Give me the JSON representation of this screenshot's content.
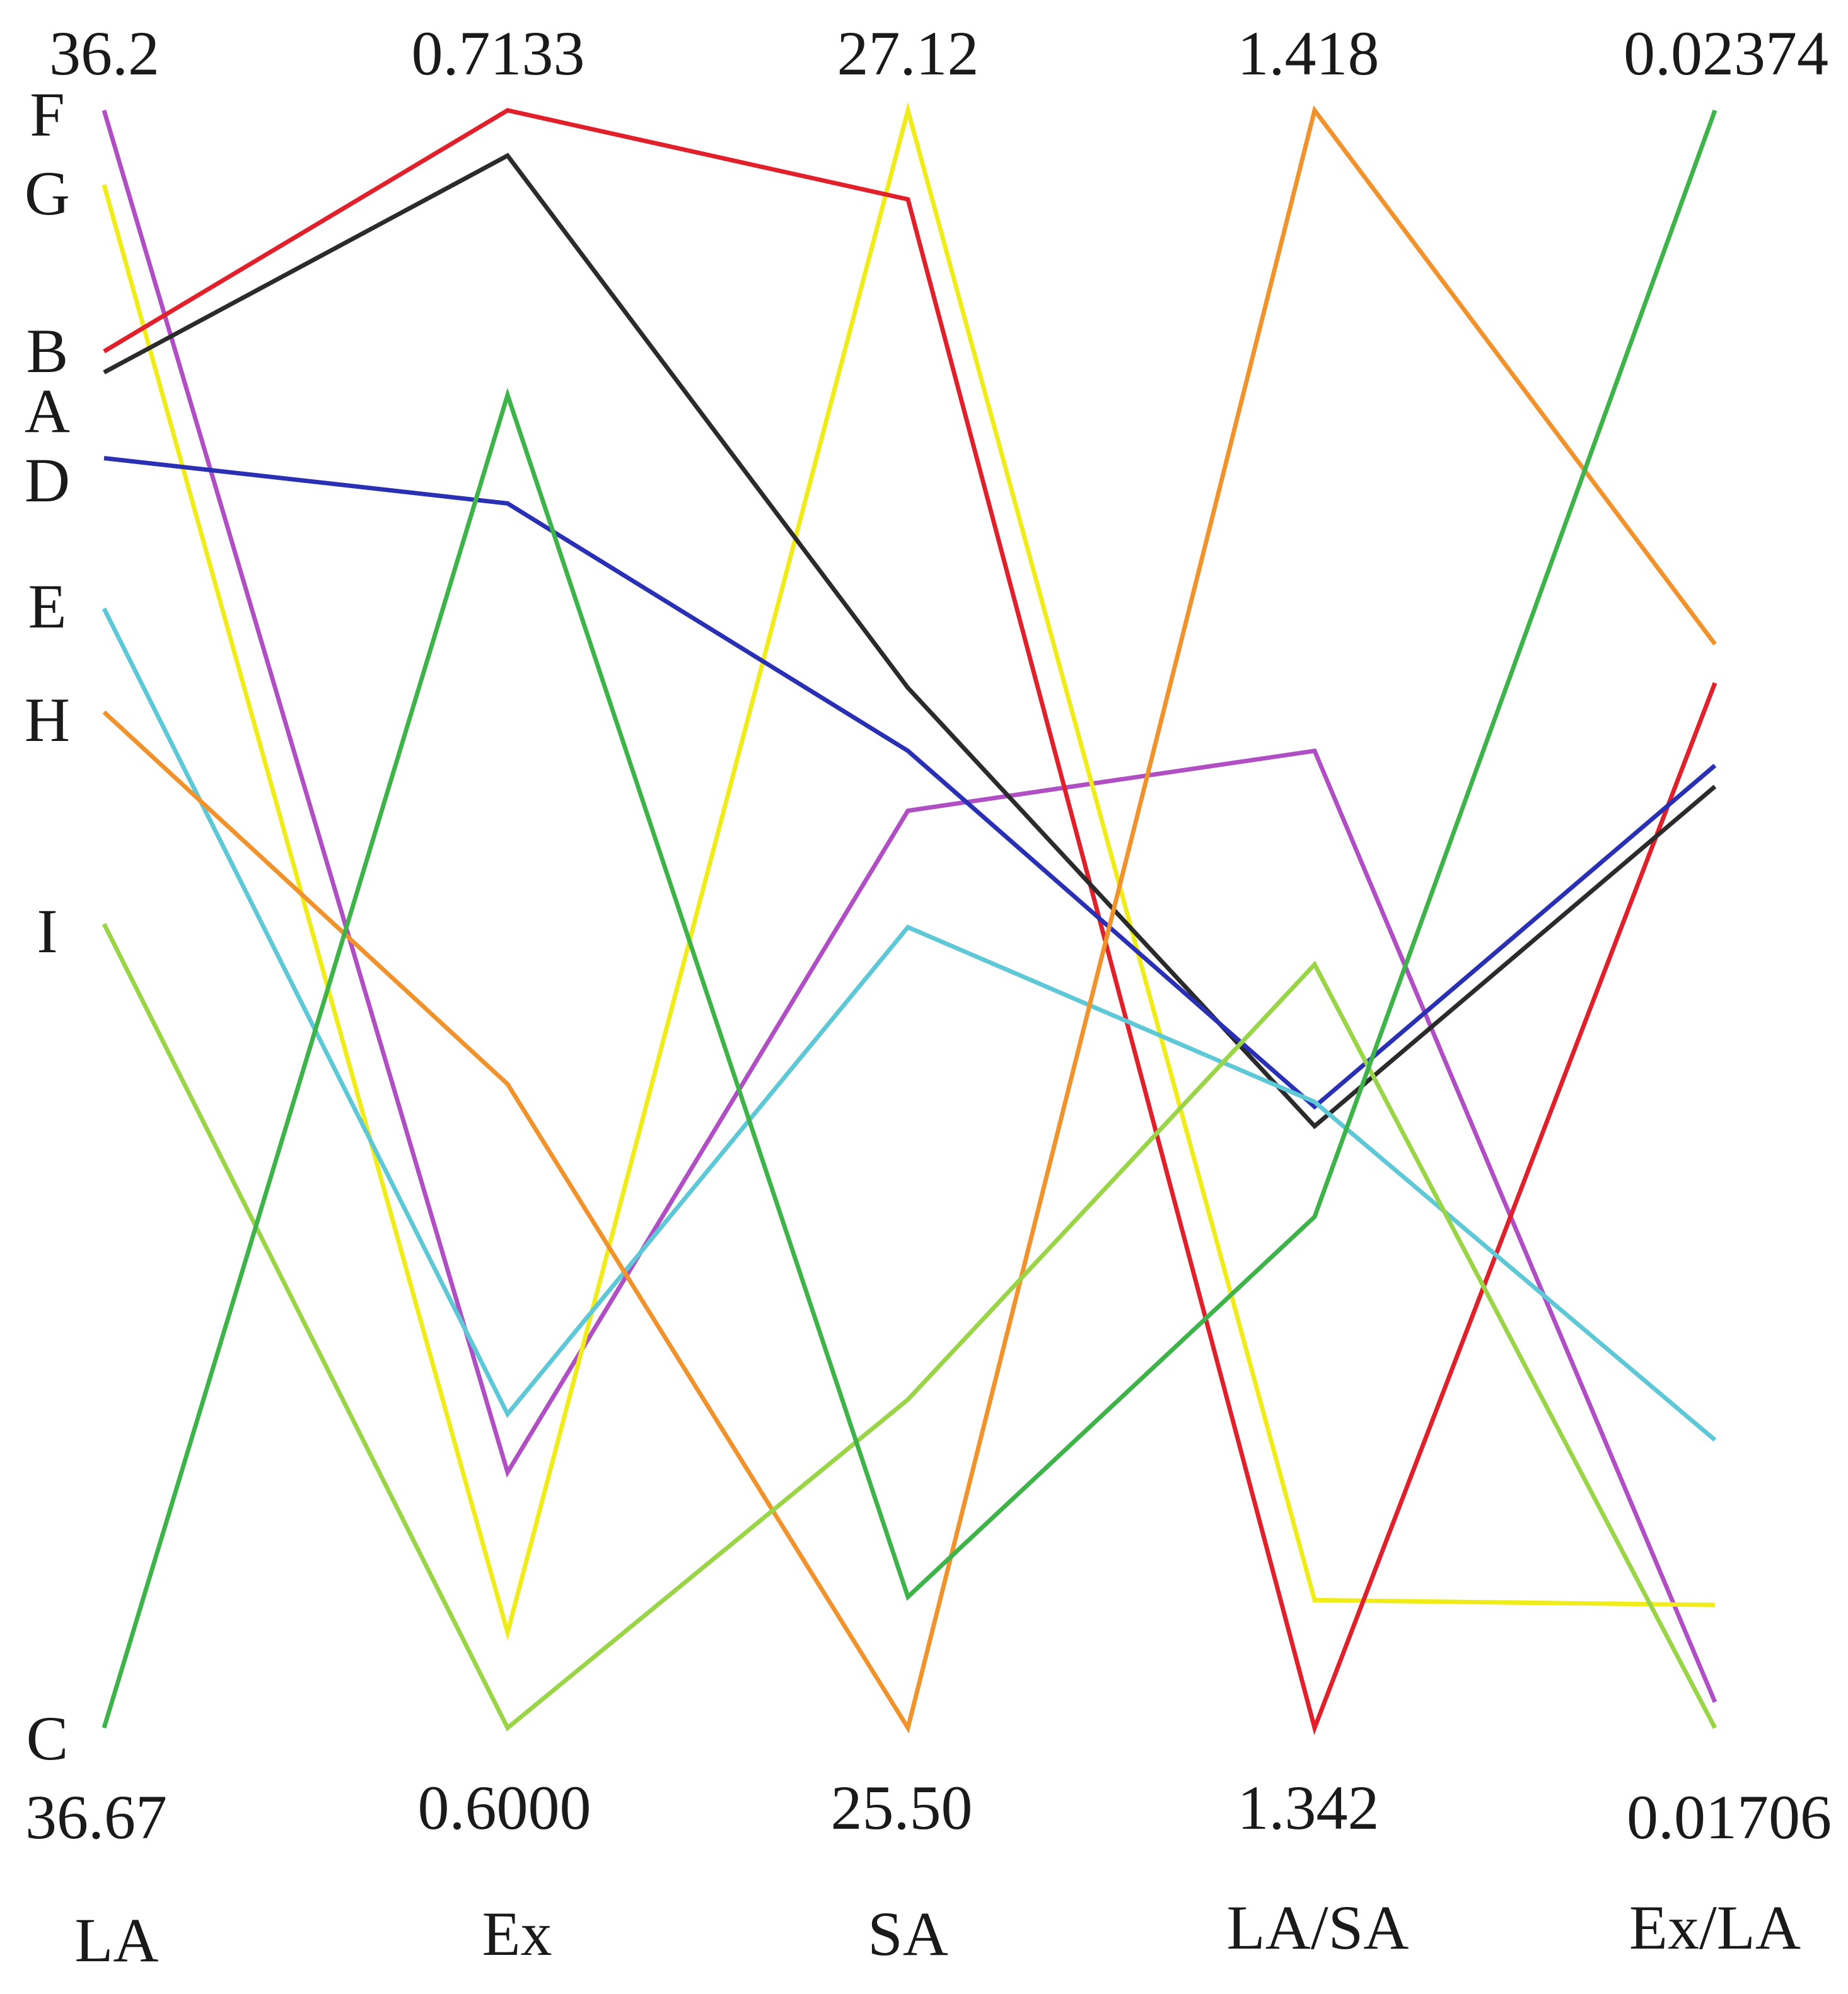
{
  "chart_data": {
    "type": "line",
    "subtype": "parallel-coordinates",
    "axes": [
      {
        "name": "LA",
        "top": "36.2",
        "bottom": "36.67"
      },
      {
        "name": "Ex",
        "top": "0.7133",
        "bottom": "0.6000"
      },
      {
        "name": "SA",
        "top": "27.12",
        "bottom": "25.50"
      },
      {
        "name": "LA/SA",
        "top": "1.418",
        "bottom": "1.342"
      },
      {
        "name": "Ex/LA",
        "top": "0.02374",
        "bottom": "0.01706"
      }
    ],
    "series": [
      {
        "name": "F",
        "color": "#b04fc4",
        "values": [
          1.0,
          0.158,
          0.567,
          0.604,
          0.016
        ]
      },
      {
        "name": "G",
        "color": "#f0ec1a",
        "values": [
          0.954,
          0.059,
          1.0,
          0.079,
          0.076
        ]
      },
      {
        "name": "B",
        "color": "#e0202a",
        "values": [
          0.851,
          1.0,
          0.945,
          0.0,
          0.646
        ]
      },
      {
        "name": "A",
        "color": "#2b2b2b",
        "values": [
          0.838,
          0.972,
          0.643,
          0.372,
          0.582
        ]
      },
      {
        "name": "D",
        "color": "#2a30b4",
        "values": [
          0.785,
          0.757,
          0.604,
          0.384,
          0.595
        ]
      },
      {
        "name": "E",
        "color": "#5ec8d6",
        "values": [
          0.692,
          0.194,
          0.495,
          0.387,
          0.178
        ]
      },
      {
        "name": "H",
        "color": "#f0932c",
        "values": [
          0.628,
          0.398,
          0.0,
          1.0,
          0.67
        ]
      },
      {
        "name": "I",
        "color": "#9ad447",
        "values": [
          0.497,
          0.0,
          0.203,
          0.472,
          0.0
        ]
      },
      {
        "name": "C",
        "color": "#3db34a",
        "values": [
          0.0,
          0.824,
          0.081,
          0.316,
          1.0
        ]
      }
    ]
  }
}
